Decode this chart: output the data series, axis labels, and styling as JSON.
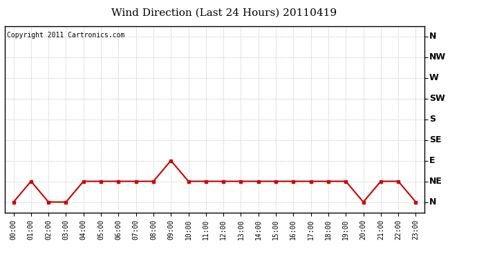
{
  "title": "Wind Direction (Last 24 Hours) 20110419",
  "copyright_text": "Copyright 2011 Cartronics.com",
  "hours": [
    0,
    1,
    2,
    3,
    4,
    5,
    6,
    7,
    8,
    9,
    10,
    11,
    12,
    13,
    14,
    15,
    16,
    17,
    18,
    19,
    20,
    21,
    22,
    23
  ],
  "hour_labels": [
    "00:00",
    "01:00",
    "02:00",
    "03:00",
    "04:00",
    "05:00",
    "06:00",
    "07:00",
    "08:00",
    "09:00",
    "10:00",
    "11:00",
    "12:00",
    "13:00",
    "14:00",
    "15:00",
    "16:00",
    "17:00",
    "18:00",
    "19:00",
    "20:00",
    "21:00",
    "22:00",
    "23:00"
  ],
  "wind_values": [
    0,
    1,
    0,
    0,
    1,
    1,
    1,
    1,
    1,
    2,
    1,
    1,
    1,
    1,
    1,
    1,
    1,
    1,
    1,
    1,
    0,
    1,
    1,
    0
  ],
  "ytick_labels": [
    "N",
    "NE",
    "E",
    "SE",
    "S",
    "SW",
    "W",
    "NW",
    "N"
  ],
  "ytick_values": [
    0,
    1,
    2,
    3,
    4,
    5,
    6,
    7,
    8
  ],
  "line_color": "#cc0000",
  "marker": "s",
  "marker_size": 3,
  "bg_color": "#ffffff",
  "grid_color": "#bbbbbb",
  "title_fontsize": 11,
  "copyright_fontsize": 7,
  "tick_fontsize": 7,
  "ytick_fontsize": 9
}
